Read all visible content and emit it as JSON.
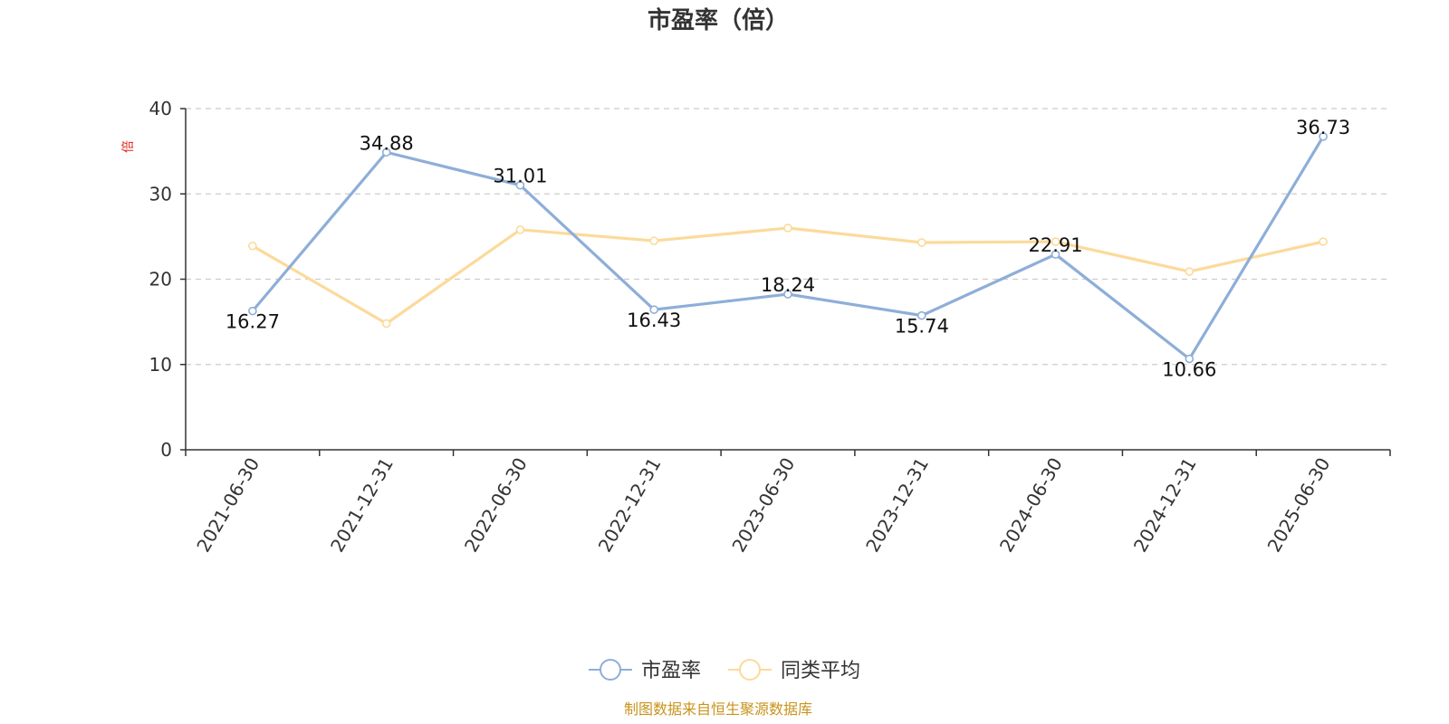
{
  "chart_data": {
    "type": "line",
    "title": "市盈率（倍）",
    "ylabel": "倍",
    "xlabel": "",
    "categories": [
      "2021-06-30",
      "2021-12-31",
      "2022-06-30",
      "2022-12-31",
      "2023-06-30",
      "2023-12-31",
      "2024-06-30",
      "2024-12-31",
      "2025-06-30"
    ],
    "ylim": [
      0,
      40
    ],
    "yticks": [
      0,
      10,
      20,
      30,
      40
    ],
    "grid": true,
    "legend_position": "bottom",
    "series": [
      {
        "name": "市盈率",
        "values": [
          16.27,
          34.88,
          31.01,
          16.43,
          18.24,
          15.74,
          22.91,
          10.66,
          36.73
        ],
        "labels": [
          "16.27",
          "34.88",
          "31.01",
          "16.43",
          "18.24",
          "15.74",
          "22.91",
          "10.66",
          "36.73"
        ],
        "color": "#8eaed8"
      },
      {
        "name": "同类平均",
        "values": [
          23.9,
          14.8,
          25.8,
          24.5,
          26.0,
          24.3,
          24.4,
          20.9,
          24.4
        ],
        "color": "#fcda9a"
      }
    ]
  },
  "colors": {
    "axis": "#333333",
    "grid": "#cccccc",
    "ylabel": "#e0261d",
    "source": "#c8931c"
  },
  "source": "制图数据来自恒生聚源数据库"
}
